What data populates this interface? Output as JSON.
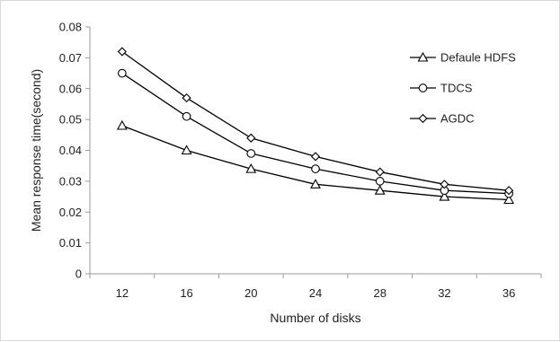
{
  "chart_data": {
    "type": "line",
    "title": "",
    "xlabel": "Number of disks",
    "ylabel": "Mean response time(second)",
    "x": [
      12,
      16,
      20,
      24,
      28,
      32,
      36
    ],
    "x_tick_labels": [
      "12",
      "16",
      "20",
      "24",
      "28",
      "32",
      "36"
    ],
    "ylim": [
      0,
      0.08
    ],
    "y_ticks": [
      0,
      0.01,
      0.02,
      0.03,
      0.04,
      0.05,
      0.06,
      0.07,
      0.08
    ],
    "y_tick_labels": [
      "0",
      "0.01",
      "0.02",
      "0.03",
      "0.04",
      "0.05",
      "0.06",
      "0.07",
      "0.08"
    ],
    "grid": false,
    "legend_position": "top-right",
    "series": [
      {
        "name": "Defaule HDFS",
        "marker": "triangle",
        "values": [
          0.048,
          0.04,
          0.034,
          0.029,
          0.027,
          0.025,
          0.024
        ]
      },
      {
        "name": "TDCS",
        "marker": "circle",
        "values": [
          0.065,
          0.051,
          0.039,
          0.034,
          0.03,
          0.027,
          0.026
        ]
      },
      {
        "name": "AGDC",
        "marker": "diamond",
        "values": [
          0.072,
          0.057,
          0.044,
          0.038,
          0.033,
          0.029,
          0.027
        ]
      }
    ],
    "colors": {
      "line": "#000000",
      "axis": "#9a9a9a"
    }
  }
}
